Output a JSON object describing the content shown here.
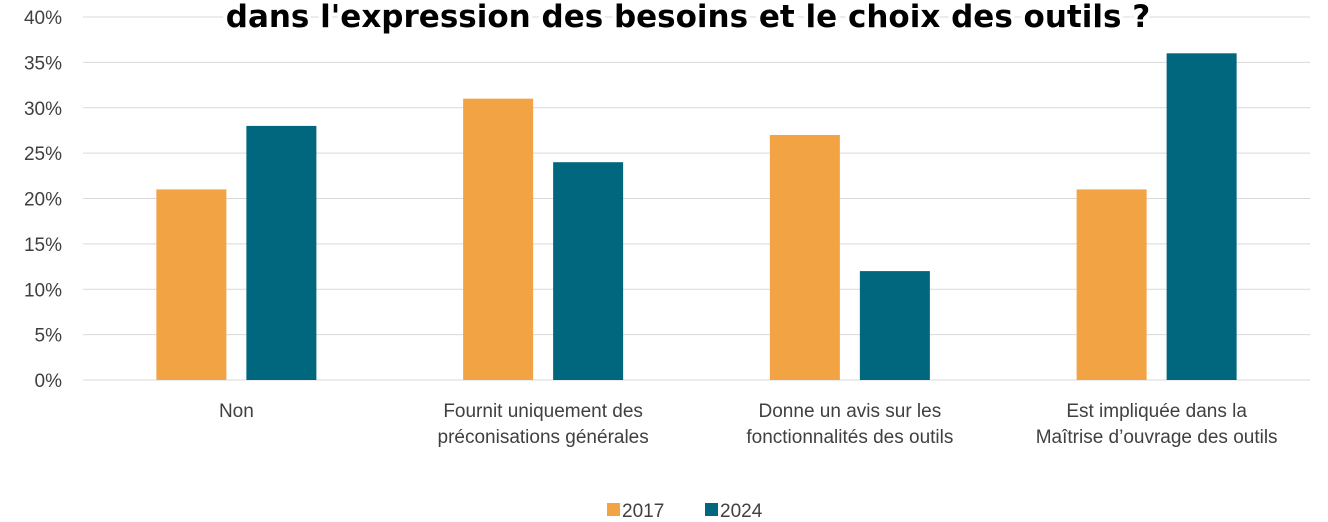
{
  "chart_data": {
    "type": "bar",
    "title": "dans l'expression des besoins et le choix des outils ?",
    "categories": [
      "Non",
      "Fournit uniquement des\npréconisations générales",
      "Donne un avis sur les\nfonctionnalités des outils",
      "Est impliquée dans la\nMaîtrise d’ouvrage des outils"
    ],
    "series": [
      {
        "name": "2017",
        "color": "#f2a444",
        "values": [
          21,
          31,
          27,
          21
        ]
      },
      {
        "name": "2024",
        "color": "#00677f",
        "values": [
          28,
          24,
          12,
          36
        ]
      }
    ],
    "ylim": [
      0,
      40
    ],
    "yticks": [
      {
        "value": 0,
        "label": "0%"
      },
      {
        "value": 5,
        "label": "5%"
      },
      {
        "value": 10,
        "label": "10%"
      },
      {
        "value": 15,
        "label": "15%"
      },
      {
        "value": 20,
        "label": "20%"
      },
      {
        "value": 25,
        "label": "25%"
      },
      {
        "value": 30,
        "label": "30%"
      },
      {
        "value": 35,
        "label": "35%"
      },
      {
        "value": 40,
        "label": "40%"
      }
    ],
    "grid": true,
    "legend": "bottom"
  }
}
